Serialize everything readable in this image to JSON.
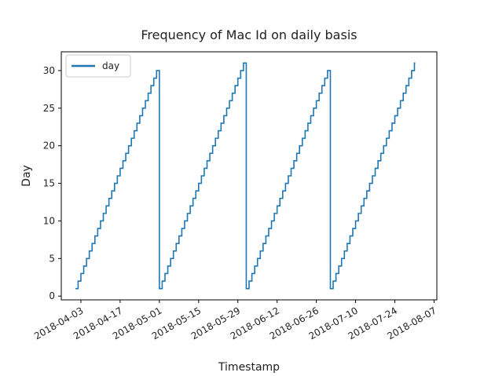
{
  "chart_data": {
    "type": "line",
    "title": "Frequency of Mac Id on daily basis",
    "xlabel": "Timestamp",
    "ylabel": "Day",
    "legend": {
      "entries": [
        "day"
      ],
      "placement": "top-left"
    },
    "grid": false,
    "x_tick_labels": [
      "2018-04-03",
      "2018-04-17",
      "2018-05-01",
      "2018-05-15",
      "2018-05-29",
      "2018-06-12",
      "2018-06-26",
      "2018-07-10",
      "2018-07-24",
      "2018-08-07"
    ],
    "y_ticks": [
      0,
      5,
      10,
      15,
      20,
      25,
      30
    ],
    "xlim": [
      "2018-03-27",
      "2018-08-08"
    ],
    "ylim": [
      -0.5,
      32.5
    ],
    "series": [
      {
        "name": "day",
        "color": "#1f77b4",
        "points": [
          {
            "x": "2018-04-01",
            "y": 1
          },
          {
            "x": "2018-04-30",
            "y": 30
          },
          {
            "x": "2018-05-01",
            "y": 1
          },
          {
            "x": "2018-05-30",
            "y": 30
          },
          {
            "x": "2018-05-31",
            "y": 31
          },
          {
            "x": "2018-06-01",
            "y": 1
          },
          {
            "x": "2018-06-29",
            "y": 29
          },
          {
            "x": "2018-06-30",
            "y": 30
          },
          {
            "x": "2018-07-01",
            "y": 1
          },
          {
            "x": "2018-07-30",
            "y": 30
          },
          {
            "x": "2018-07-31",
            "y": 31
          }
        ]
      }
    ]
  }
}
